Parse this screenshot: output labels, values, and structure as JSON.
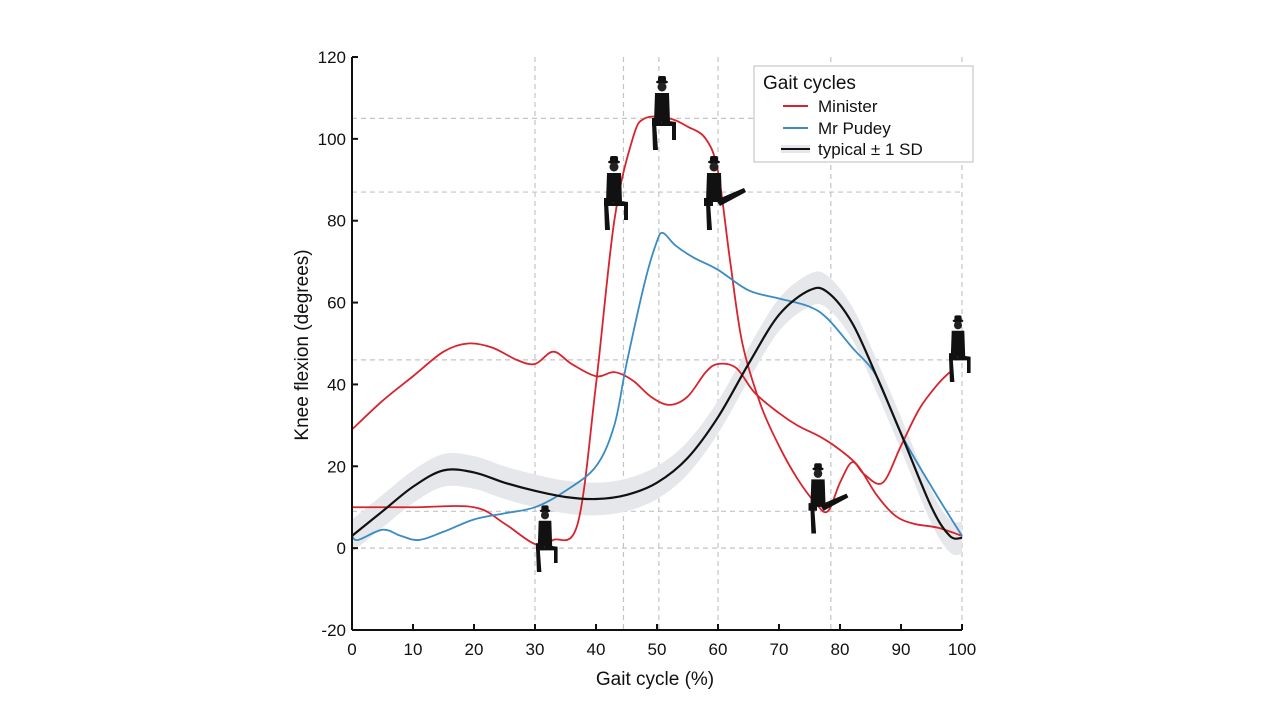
{
  "chart_data": {
    "type": "line",
    "title": "",
    "xlabel": "Gait cycle (%)",
    "ylabel": "Knee flexion (degrees)",
    "xlim": [
      0,
      100
    ],
    "ylim": [
      -20,
      120
    ],
    "xticks": [
      0,
      10,
      20,
      30,
      40,
      50,
      60,
      70,
      80,
      90,
      100
    ],
    "yticks": [
      -20,
      0,
      20,
      40,
      60,
      80,
      100,
      120
    ],
    "grid_x": [
      30,
      44.5,
      50.3,
      60,
      78.5,
      100
    ],
    "grid_y": [
      105,
      87,
      46,
      9,
      0
    ],
    "grid": "dashed reference lines",
    "legend": {
      "title": "Gait cycles",
      "position": "top-right",
      "entries": [
        "Minister",
        "Mr Pudey",
        "typical ± 1 SD"
      ]
    },
    "colors": {
      "minister": "#d7232c",
      "pudey": "#3b8bc4",
      "typical": "#111111",
      "sd_band": "#e6e7ea",
      "grid": "#c4c4c4"
    },
    "series": [
      {
        "name": "Minister",
        "color": "#d7232c",
        "x": [
          0,
          10,
          20,
          25,
          30,
          33,
          37,
          40,
          43,
          46,
          48,
          52,
          55,
          58,
          60,
          62,
          64,
          67,
          70,
          73,
          76,
          78,
          80,
          82,
          84,
          87,
          90,
          93,
          96,
          98
        ],
        "y": [
          10,
          10,
          10,
          6,
          1,
          2,
          6,
          40,
          80,
          100,
          105,
          105,
          103,
          100,
          92,
          70,
          50,
          35,
          25,
          17,
          11,
          9,
          16,
          21,
          18,
          16,
          25,
          34,
          40,
          43
        ]
      },
      {
        "name": "Minister",
        "color": "#d7232c",
        "x": [
          0,
          5,
          10,
          15,
          19,
          23,
          27,
          30,
          33,
          36,
          40,
          43,
          46,
          49,
          52,
          55,
          58,
          60,
          63,
          66,
          70,
          73,
          77,
          80,
          83,
          86,
          89,
          92,
          96,
          100
        ],
        "y": [
          29,
          36,
          42,
          48,
          50,
          49,
          46,
          45,
          48,
          45,
          42,
          43,
          41,
          37,
          35,
          37,
          43,
          45,
          44,
          38,
          33,
          30,
          27,
          24,
          20,
          13,
          8,
          6,
          5,
          3
        ]
      },
      {
        "name": "Mr Pudey",
        "color": "#3b8bc4",
        "x": [
          0,
          1,
          5,
          8,
          11,
          15,
          20,
          25,
          30,
          35,
          40,
          43,
          45,
          48,
          50,
          51,
          53,
          56,
          60,
          65,
          70,
          75,
          78,
          82,
          86,
          90,
          95,
          100
        ],
        "y": [
          3,
          2,
          4.5,
          3,
          2,
          4,
          7,
          8.5,
          10,
          14,
          20,
          30,
          45,
          65,
          75,
          77,
          74,
          71,
          68,
          63,
          61,
          59,
          56,
          49,
          42,
          28,
          15,
          3
        ]
      },
      {
        "name": "typical ± 1 SD",
        "color": "#111111",
        "sd": 4,
        "x": [
          0,
          5,
          10,
          15,
          20,
          25,
          30,
          35,
          40,
          45,
          50,
          55,
          60,
          65,
          70,
          75,
          78,
          82,
          86,
          90,
          95,
          98,
          100
        ],
        "y": [
          3,
          9,
          15,
          19,
          18.5,
          16,
          14,
          12.5,
          12,
          13,
          16,
          22,
          32,
          45,
          57,
          63,
          62.5,
          55,
          42,
          28,
          10,
          3,
          2.5
        ]
      }
    ]
  }
}
